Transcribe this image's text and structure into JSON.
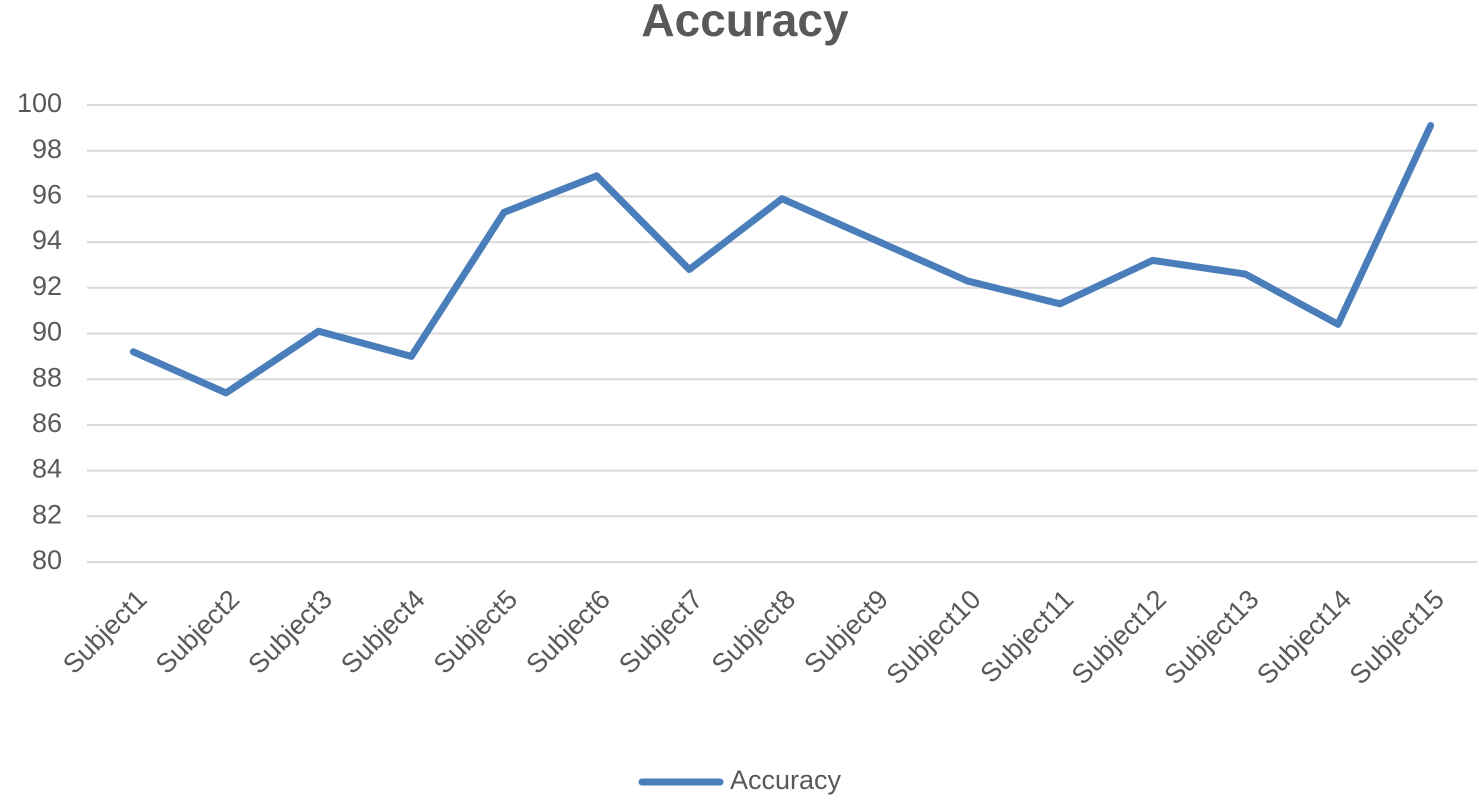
{
  "chart_data": {
    "type": "line",
    "title": "Accuracy",
    "categories": [
      "Subject1",
      "Subject2",
      "Subject3",
      "Subject4",
      "Subject5",
      "Subject6",
      "Subject7",
      "Subject8",
      "Subject9",
      "Subject10",
      "Subject11",
      "Subject12",
      "Subject13",
      "Subject14",
      "Subject15"
    ],
    "series": [
      {
        "name": "Accuracy",
        "color": "#4a7ebb",
        "values": [
          89.2,
          87.4,
          90.1,
          89.0,
          95.3,
          96.9,
          92.8,
          95.9,
          94.1,
          92.3,
          91.3,
          93.2,
          92.6,
          90.4,
          99.1
        ]
      }
    ],
    "ylim": [
      80,
      100
    ],
    "yticks": [
      80,
      82,
      84,
      86,
      88,
      90,
      92,
      94,
      96,
      98,
      100
    ],
    "grid": true,
    "legend": "bottom"
  }
}
